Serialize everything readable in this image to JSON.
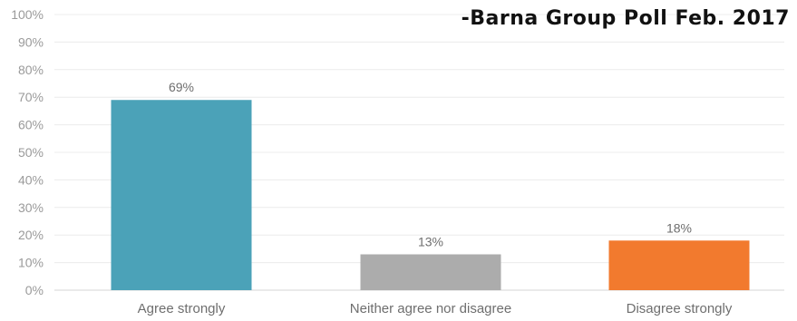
{
  "chart_data": {
    "type": "bar",
    "title": "",
    "xlabel": "",
    "ylabel": "",
    "categories": [
      "Agree strongly",
      "Neither agree nor disagree",
      "Disagree strongly"
    ],
    "values": [
      69,
      13,
      18
    ],
    "data_labels": [
      "69%",
      "13%",
      "18%"
    ],
    "bar_colors": [
      "#4ba2b8",
      "#acacac",
      "#f27a2e"
    ],
    "ylim": [
      0,
      100
    ],
    "yticks": [
      0,
      10,
      20,
      30,
      40,
      50,
      60,
      70,
      80,
      90,
      100
    ],
    "ytick_labels": [
      "0%",
      "10%",
      "20%",
      "30%",
      "40%",
      "50%",
      "60%",
      "70%",
      "80%",
      "90%",
      "100%"
    ],
    "grid": true,
    "legend": "none"
  },
  "source_note": "-Barna Group Poll Feb. 2017"
}
